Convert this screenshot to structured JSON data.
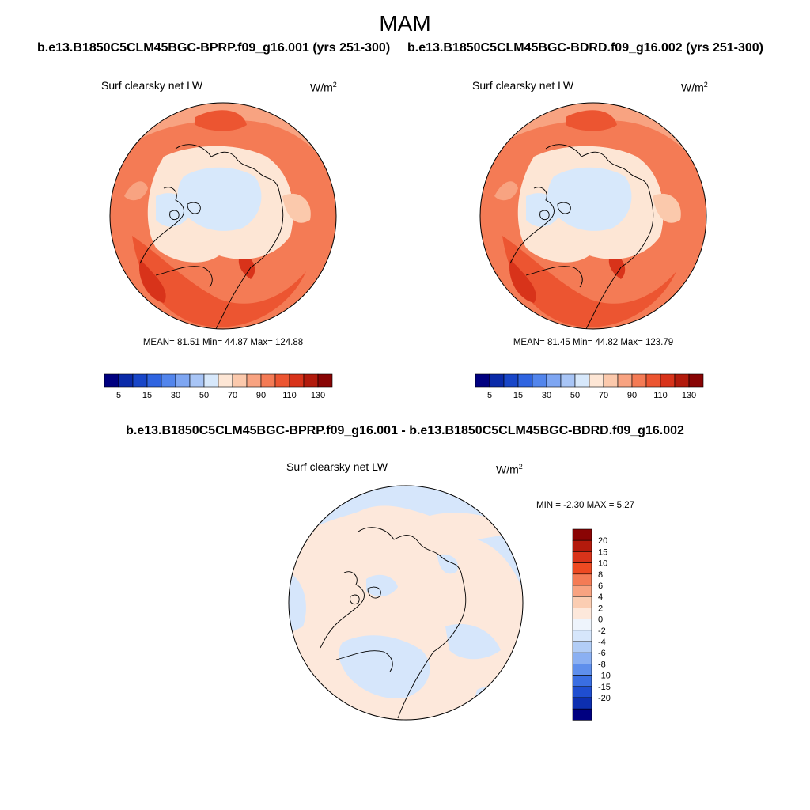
{
  "figure": {
    "season_title": "MAM",
    "case1_title": "b.e13.B1850C5CLM45BGC-BPRP.f09_g16.001 (yrs 251-300)",
    "case2_title": "b.e13.B1850C5CLM45BGC-BDRD.f09_g16.002 (yrs 251-300)",
    "diff_title": "b.e13.B1850C5CLM45BGC-BPRP.f09_g16.001 - b.e13.B1850C5CLM45BGC-BDRD.f09_g16.002"
  },
  "panels": {
    "left": {
      "variable": "Surf clearsky net LW",
      "units_base": "W/m",
      "units_exp": "2",
      "stats": "MEAN=  81.51  Min=  44.87  Max= 124.88"
    },
    "right": {
      "variable": "Surf clearsky net LW",
      "units_base": "W/m",
      "units_exp": "2",
      "stats": "MEAN=  81.45  Min=  44.82  Max= 123.79"
    },
    "diff": {
      "variable": "Surf clearsky net LW",
      "units_base": "W/m",
      "units_exp": "2",
      "stats": "MIN =  -2.30 MAX =   5.27"
    }
  },
  "colorbars": {
    "absolute": {
      "colors": [
        "#000080",
        "#0a2aa8",
        "#1846c8",
        "#2f64e0",
        "#5285ec",
        "#7ea6f2",
        "#a8c5f6",
        "#d7e8fb",
        "#fde6d5",
        "#fbc9ac",
        "#f8a381",
        "#f47b55",
        "#ec5531",
        "#d8331a",
        "#b21a0c",
        "#880404"
      ],
      "tick_labels": [
        "5",
        "15",
        "30",
        "50",
        "70",
        "90",
        "110",
        "130"
      ]
    },
    "difference": {
      "colors": [
        "#8a0404",
        "#b31a0c",
        "#d8331a",
        "#ee4a22",
        "#f47b55",
        "#f8a381",
        "#fbcdb2",
        "#fde8db",
        "#eef4fc",
        "#d6e6fb",
        "#b2cdf6",
        "#8bb0f2",
        "#5f8fec",
        "#3a6ee2",
        "#1f4ed0",
        "#0d2fb0",
        "#000080"
      ],
      "tick_labels": [
        "20",
        "15",
        "10",
        "8",
        "6",
        "4",
        "2",
        "0",
        "-2",
        "-4",
        "-6",
        "-8",
        "-10",
        "-15",
        "-20"
      ]
    }
  }
}
